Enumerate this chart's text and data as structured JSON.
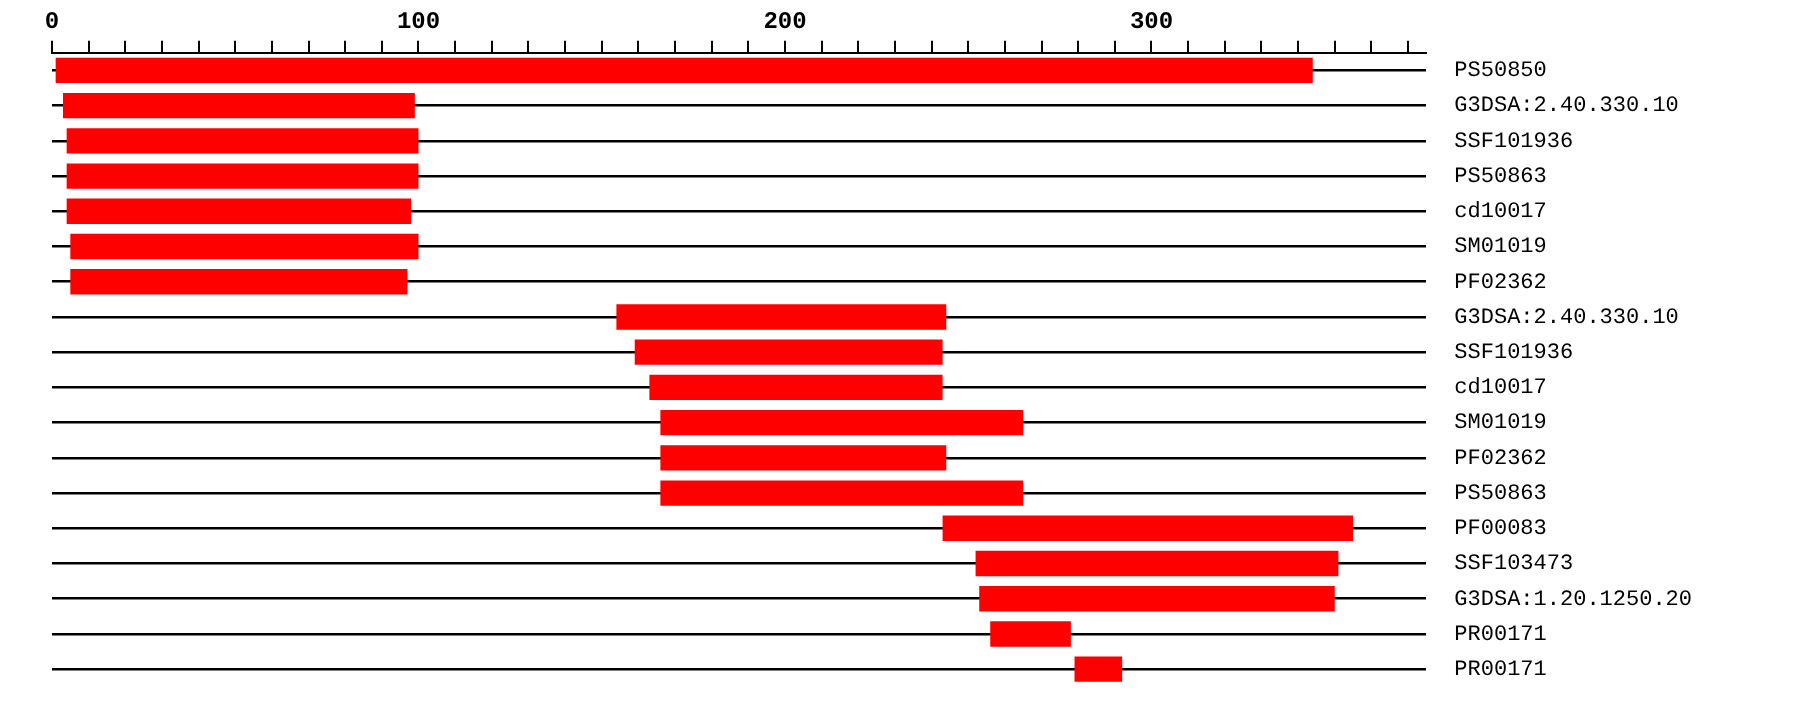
{
  "chart_data": {
    "type": "bar",
    "orientation": "horizontal",
    "color": "#ff0000",
    "categories": [
      "PS50850",
      "G3DSA:2.40.330.10",
      "SSF101936",
      "PS50863",
      "cd10017",
      "SM01019",
      "PF02362",
      "G3DSA:2.40.330.10",
      "SSF101936",
      "cd10017",
      "SM01019",
      "PF02362",
      "PS50863",
      "PF00083",
      "SSF103473",
      "G3DSA:1.20.1250.20",
      "PR00171",
      "PR00171"
    ],
    "base": [
      1,
      3,
      4,
      4,
      4,
      5,
      5,
      154,
      159,
      163,
      166,
      166,
      166,
      243,
      252,
      253,
      256,
      279
    ],
    "values": [
      343,
      96,
      96,
      96,
      94,
      95,
      92,
      90,
      84,
      80,
      99,
      78,
      99,
      112,
      99,
      97,
      22,
      13
    ],
    "xlim": [
      0,
      375
    ],
    "xticks": [
      0,
      {
        "value": 10,
        "label": null
      },
      {
        "value": 20,
        "label": null
      },
      {
        "value": 30,
        "label": null
      },
      {
        "value": 40,
        "label": null
      },
      {
        "value": 50,
        "label": null
      },
      {
        "value": 60,
        "label": null
      },
      {
        "value": 70,
        "label": null
      },
      {
        "value": 80,
        "label": null
      },
      {
        "value": 90,
        "label": null
      },
      100,
      {
        "value": 110,
        "label": null
      },
      {
        "value": 120,
        "label": null
      },
      {
        "value": 130,
        "label": null
      },
      {
        "value": 140,
        "label": null
      },
      {
        "value": 150,
        "label": null
      },
      {
        "value": 160,
        "label": null
      },
      {
        "value": 170,
        "label": null
      },
      {
        "value": 180,
        "label": null
      },
      {
        "value": 190,
        "label": null
      },
      200,
      {
        "value": 210,
        "label": null
      },
      {
        "value": 220,
        "label": null
      },
      {
        "value": 230,
        "label": null
      },
      {
        "value": 240,
        "label": null
      },
      {
        "value": 250,
        "label": null
      },
      {
        "value": 260,
        "label": null
      },
      {
        "value": 270,
        "label": null
      },
      {
        "value": 280,
        "label": null
      },
      {
        "value": 290,
        "label": null
      },
      300,
      {
        "value": 310,
        "label": null
      },
      {
        "value": 320,
        "label": null
      },
      {
        "value": 330,
        "label": null
      },
      {
        "value": 340,
        "label": null
      },
      {
        "value": 350,
        "label": null
      },
      {
        "value": 360,
        "label": null
      },
      {
        "value": 370,
        "label": null
      }
    ],
    "grid": "y",
    "legend": false
  }
}
